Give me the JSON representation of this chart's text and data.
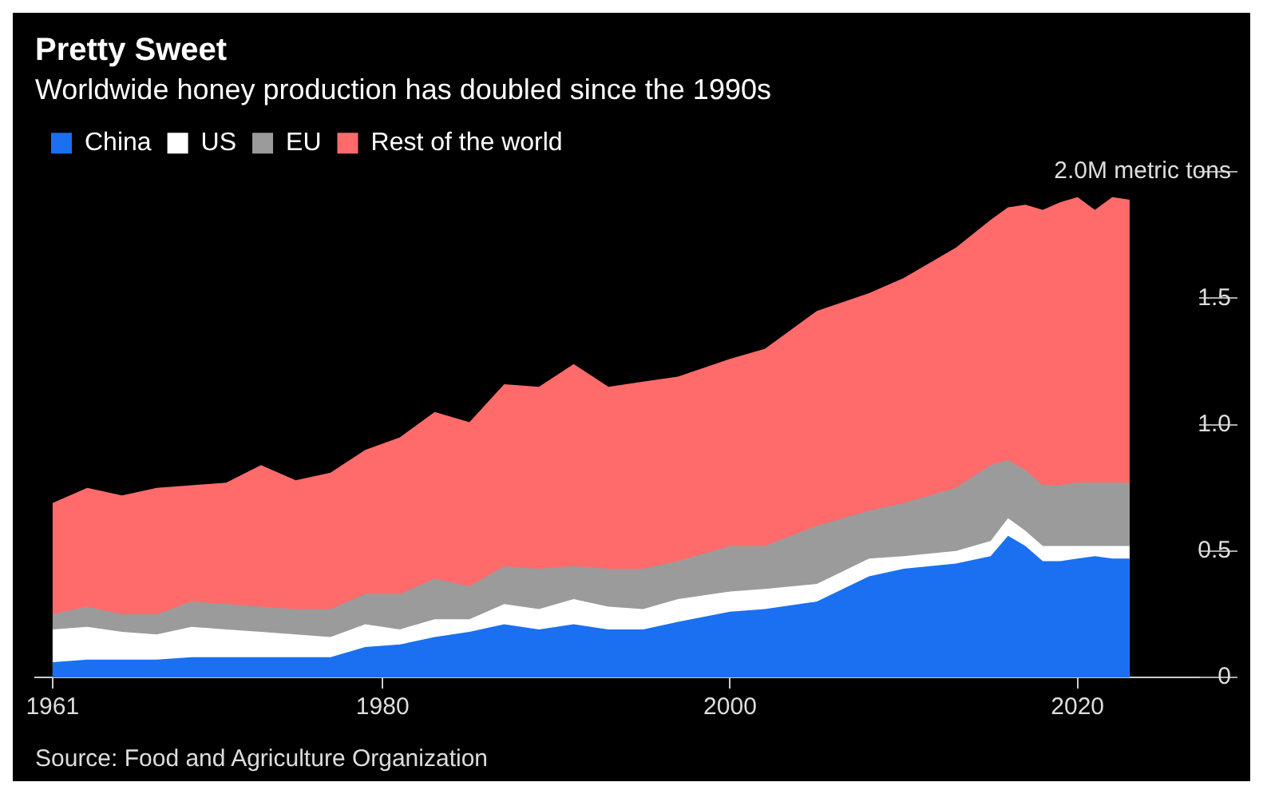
{
  "chart_data": {
    "type": "area",
    "stacked": true,
    "title": "Pretty Sweet",
    "subtitle": "Worldwide honey production has doubled since the 1990s",
    "x": [
      1961,
      1963,
      1965,
      1967,
      1969,
      1971,
      1973,
      1975,
      1977,
      1979,
      1981,
      1983,
      1985,
      1987,
      1989,
      1991,
      1993,
      1995,
      1997,
      2000,
      2002,
      2005,
      2008,
      2010,
      2013,
      2015,
      2016,
      2017,
      2018,
      2019,
      2020,
      2021,
      2022,
      2023
    ],
    "series": [
      {
        "name": "China",
        "color": "#1a70f0",
        "values": [
          0.06,
          0.07,
          0.07,
          0.07,
          0.08,
          0.08,
          0.08,
          0.08,
          0.08,
          0.12,
          0.13,
          0.16,
          0.18,
          0.21,
          0.19,
          0.21,
          0.19,
          0.19,
          0.22,
          0.26,
          0.27,
          0.3,
          0.4,
          0.43,
          0.45,
          0.48,
          0.56,
          0.52,
          0.46,
          0.46,
          0.47,
          0.48,
          0.47,
          0.47
        ]
      },
      {
        "name": "US",
        "color": "#ffffff",
        "values": [
          0.13,
          0.13,
          0.11,
          0.1,
          0.12,
          0.11,
          0.1,
          0.09,
          0.08,
          0.09,
          0.06,
          0.07,
          0.05,
          0.08,
          0.08,
          0.1,
          0.09,
          0.08,
          0.09,
          0.08,
          0.08,
          0.07,
          0.07,
          0.05,
          0.05,
          0.06,
          0.07,
          0.06,
          0.06,
          0.06,
          0.05,
          0.04,
          0.05,
          0.05
        ]
      },
      {
        "name": "EU",
        "color": "#9b9b9b",
        "values": [
          0.06,
          0.08,
          0.07,
          0.08,
          0.1,
          0.1,
          0.1,
          0.1,
          0.11,
          0.12,
          0.14,
          0.16,
          0.13,
          0.15,
          0.16,
          0.13,
          0.15,
          0.16,
          0.15,
          0.18,
          0.17,
          0.23,
          0.19,
          0.21,
          0.25,
          0.3,
          0.23,
          0.24,
          0.24,
          0.24,
          0.25,
          0.25,
          0.25,
          0.25
        ]
      },
      {
        "name": "Rest of the world",
        "color": "#ff6b6b",
        "values": [
          0.44,
          0.47,
          0.47,
          0.5,
          0.46,
          0.48,
          0.56,
          0.51,
          0.54,
          0.57,
          0.62,
          0.66,
          0.65,
          0.72,
          0.72,
          0.8,
          0.72,
          0.74,
          0.73,
          0.74,
          0.78,
          0.85,
          0.86,
          0.89,
          0.95,
          0.97,
          1.0,
          1.05,
          1.09,
          1.12,
          1.13,
          1.08,
          1.13,
          1.12
        ]
      }
    ],
    "xlim": [
      1960,
      2027
    ],
    "xticks": [
      1961,
      1980,
      2000,
      2020
    ],
    "ylim": [
      0,
      2
    ],
    "yticks": [
      0,
      0.5,
      {
        "value": 1,
        "label": "1.0"
      },
      1.5,
      {
        "value": 2,
        "label": "2.0M metric tons"
      }
    ],
    "legend": "top left",
    "annotations": [
      "Source: Food and Agriculture Organization"
    ]
  }
}
